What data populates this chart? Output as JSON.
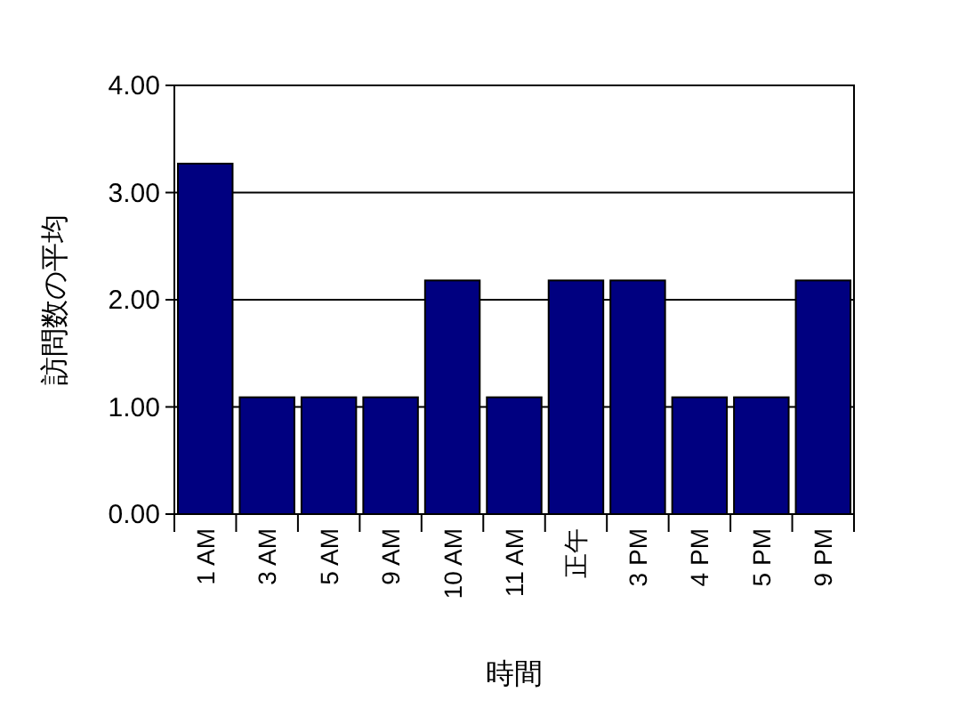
{
  "chart_data": {
    "type": "bar",
    "xlabel": "時間",
    "ylabel": "訪問数の平均",
    "categories": [
      "1 AM",
      "3 AM",
      "5 AM",
      "9 AM",
      "10 AM",
      "11 AM",
      "正午",
      "3 PM",
      "4 PM",
      "5 PM",
      "9 PM"
    ],
    "values": [
      3.27,
      1.09,
      1.09,
      1.09,
      2.18,
      1.09,
      2.18,
      2.18,
      1.09,
      1.09,
      2.18
    ],
    "color": "#000080",
    "ylim": [
      0,
      4
    ],
    "yticks": [
      {
        "value": 0,
        "label": "0.00"
      },
      {
        "value": 1,
        "label": "1.00"
      },
      {
        "value": 2,
        "label": "2.00"
      },
      {
        "value": 3,
        "label": "3.00"
      },
      {
        "value": 4,
        "label": "4.00"
      }
    ],
    "grid": "y"
  }
}
